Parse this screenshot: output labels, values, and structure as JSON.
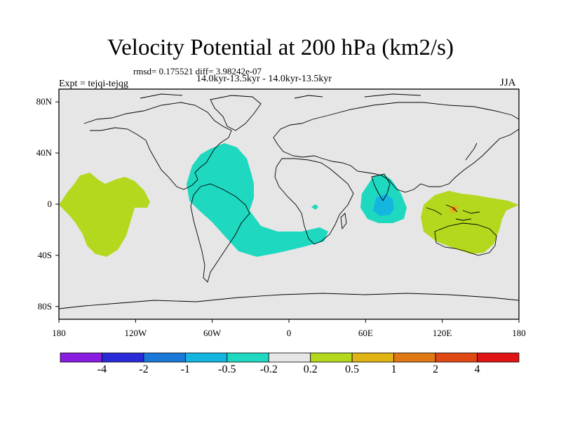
{
  "title": "Velocity Potential at 200 hPa (km2/s)",
  "stats_line": "rmsd= 0.175521 diff= 3.98242e-07",
  "period_line": "14.0kyr-13.5kyr - 14.0kyr-13.5kyr",
  "experiment_line": "Expt = tejqi-tejqg",
  "season": "JJA",
  "axes": {
    "lat_ticks": [
      {
        "label": "80N",
        "value": 80
      },
      {
        "label": "40N",
        "value": 40
      },
      {
        "label": "0",
        "value": 0
      },
      {
        "label": "40S",
        "value": -40
      },
      {
        "label": "80S",
        "value": -80
      }
    ],
    "lon_ticks": [
      {
        "label": "180",
        "value": -180
      },
      {
        "label": "120W",
        "value": -120
      },
      {
        "label": "60W",
        "value": -60
      },
      {
        "label": "0",
        "value": 0
      },
      {
        "label": "60E",
        "value": 60
      },
      {
        "label": "120E",
        "value": 120
      },
      {
        "label": "180",
        "value": 180
      }
    ]
  },
  "colorbar": {
    "labels": [
      "-4",
      "-2",
      "-1",
      "-0.5",
      "-0.2",
      "0.2",
      "0.5",
      "1",
      "2",
      "4"
    ],
    "colors": [
      "#8a1be0",
      "#2a2ad8",
      "#1a78d8",
      "#14b6e0",
      "#1ed8c0",
      "#e6e6e6",
      "#b4d81e",
      "#e0b414",
      "#e07814",
      "#e04814",
      "#e01414"
    ]
  },
  "colors": {
    "background_field": "#e6e6e6",
    "neg_small": "#1ed8c0",
    "neg_medium": "#14b6e0",
    "pos_small": "#b4d81e",
    "pos_medium": "#e0b414",
    "pos_large": "#e07814"
  }
}
